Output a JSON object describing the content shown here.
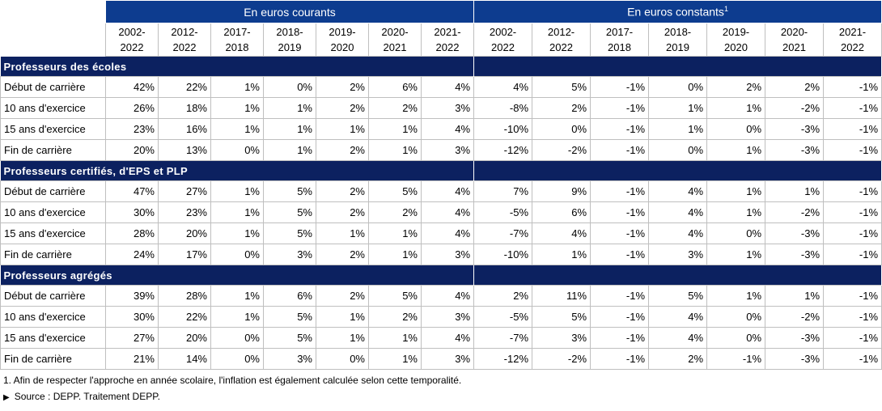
{
  "header": {
    "groups": [
      {
        "label": "En euros courants"
      },
      {
        "label": "En euros constants",
        "note": "1"
      }
    ],
    "periods": [
      "2002-\n2022",
      "2012-\n2022",
      "2017-\n2018",
      "2018-\n2019",
      "2019-\n2020",
      "2020-\n2021",
      "2021-\n2022",
      "2002-\n2022",
      "2012-\n2022",
      "2017-\n2018",
      "2018-\n2019",
      "2019-\n2020",
      "2020-\n2021",
      "2021-\n2022"
    ]
  },
  "sections": [
    {
      "title": "Professeurs des écoles",
      "rows": [
        {
          "label": "Début de carrière",
          "values": [
            "42%",
            "22%",
            "1%",
            "0%",
            "2%",
            "6%",
            "4%",
            "4%",
            "5%",
            "-1%",
            "0%",
            "2%",
            "2%",
            "-1%"
          ]
        },
        {
          "label": "10 ans d'exercice",
          "values": [
            "26%",
            "18%",
            "1%",
            "1%",
            "2%",
            "2%",
            "3%",
            "-8%",
            "2%",
            "-1%",
            "1%",
            "1%",
            "-2%",
            "-1%"
          ]
        },
        {
          "label": "15 ans d'exercice",
          "values": [
            "23%",
            "16%",
            "1%",
            "1%",
            "1%",
            "1%",
            "4%",
            "-10%",
            "0%",
            "-1%",
            "1%",
            "0%",
            "-3%",
            "-1%"
          ]
        },
        {
          "label": "Fin de carrière",
          "values": [
            "20%",
            "13%",
            "0%",
            "1%",
            "2%",
            "1%",
            "3%",
            "-12%",
            "-2%",
            "-1%",
            "0%",
            "1%",
            "-3%",
            "-1%"
          ]
        }
      ]
    },
    {
      "title": "Professeurs certifiés, d'EPS et PLP",
      "rows": [
        {
          "label": "Début de carrière",
          "values": [
            "47%",
            "27%",
            "1%",
            "5%",
            "2%",
            "5%",
            "4%",
            "7%",
            "9%",
            "-1%",
            "4%",
            "1%",
            "1%",
            "-1%"
          ]
        },
        {
          "label": "10 ans d'exercice",
          "values": [
            "30%",
            "23%",
            "1%",
            "5%",
            "2%",
            "2%",
            "4%",
            "-5%",
            "6%",
            "-1%",
            "4%",
            "1%",
            "-2%",
            "-1%"
          ]
        },
        {
          "label": "15 ans d'exercice",
          "values": [
            "28%",
            "20%",
            "1%",
            "5%",
            "1%",
            "1%",
            "4%",
            "-7%",
            "4%",
            "-1%",
            "4%",
            "0%",
            "-3%",
            "-1%"
          ]
        },
        {
          "label": "Fin de carrière",
          "values": [
            "24%",
            "17%",
            "0%",
            "3%",
            "2%",
            "1%",
            "3%",
            "-10%",
            "1%",
            "-1%",
            "3%",
            "1%",
            "-3%",
            "-1%"
          ]
        }
      ]
    },
    {
      "title": "Professeurs agrégés",
      "rows": [
        {
          "label": "Début de carrière",
          "values": [
            "39%",
            "28%",
            "1%",
            "6%",
            "2%",
            "5%",
            "4%",
            "2%",
            "11%",
            "-1%",
            "5%",
            "1%",
            "1%",
            "-1%"
          ]
        },
        {
          "label": "10 ans d'exercice",
          "values": [
            "30%",
            "22%",
            "1%",
            "5%",
            "1%",
            "2%",
            "3%",
            "-5%",
            "5%",
            "-1%",
            "4%",
            "0%",
            "-2%",
            "-1%"
          ]
        },
        {
          "label": "15 ans d'exercice",
          "values": [
            "27%",
            "20%",
            "0%",
            "5%",
            "1%",
            "1%",
            "4%",
            "-7%",
            "3%",
            "-1%",
            "4%",
            "0%",
            "-3%",
            "-1%"
          ]
        },
        {
          "label": "Fin de carrière",
          "values": [
            "21%",
            "14%",
            "0%",
            "3%",
            "0%",
            "1%",
            "3%",
            "-12%",
            "-2%",
            "-1%",
            "2%",
            "-1%",
            "-3%",
            "-1%"
          ]
        }
      ]
    }
  ],
  "footnote": "1. Afin de respecter l'approche en année scolaire, l'inflation est également calculée selon cette temporalité.",
  "source": "Source : DEPP. Traitement DEPP."
}
